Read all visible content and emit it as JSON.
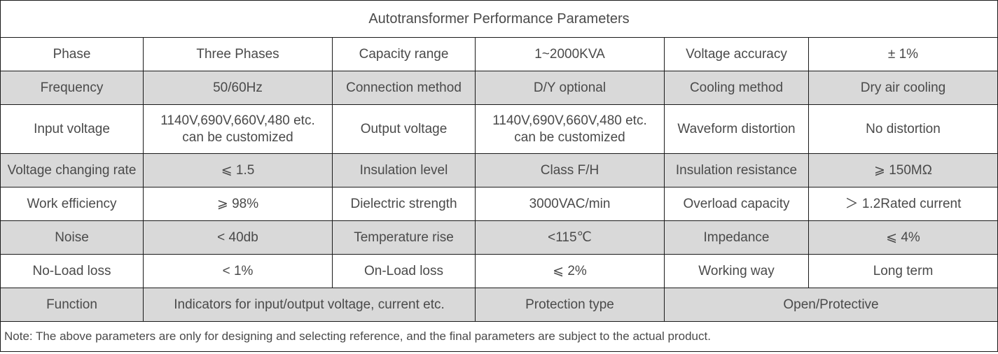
{
  "title": "Autotransformer Performance Parameters",
  "rows": [
    [
      "Phase",
      "Three Phases",
      "Capacity range",
      "1~2000KVA",
      "Voltage accuracy",
      "± 1%"
    ],
    [
      "Frequency",
      "50/60Hz",
      "Connection method",
      "D/Y optional",
      "Cooling method",
      "Dry air cooling"
    ],
    [
      "Input voltage",
      "1140V,690V,660V,480 etc.",
      "can be customized",
      "Output voltage",
      "1140V,690V,660V,480 etc.",
      "can be customized",
      "Waveform distortion",
      "No distortion"
    ],
    [
      "Voltage changing rate",
      "⩽ 1.5",
      "Insulation level",
      "Class F/H",
      "Insulation resistance",
      "⩾ 150MΩ"
    ],
    [
      "Work efficiency",
      "⩾ 98%",
      "Dielectric strength",
      "3000VAC/min",
      "Overload capacity",
      "＞ 1.2Rated current"
    ],
    [
      "Noise",
      "< 40db",
      "Temperature rise",
      "<115℃",
      "Impedance",
      "⩽ 4%"
    ],
    [
      "No-Load loss",
      "< 1%",
      "On-Load loss",
      "⩽ 2%",
      "Working way",
      "Long term"
    ],
    [
      "Function",
      "Indicators for input/output voltage, current etc.",
      "Protection type",
      "Open/Protective"
    ]
  ],
  "note": "Note: The above parameters are only for designing and selecting  reference, and the final parameters are subject to the actual product."
}
